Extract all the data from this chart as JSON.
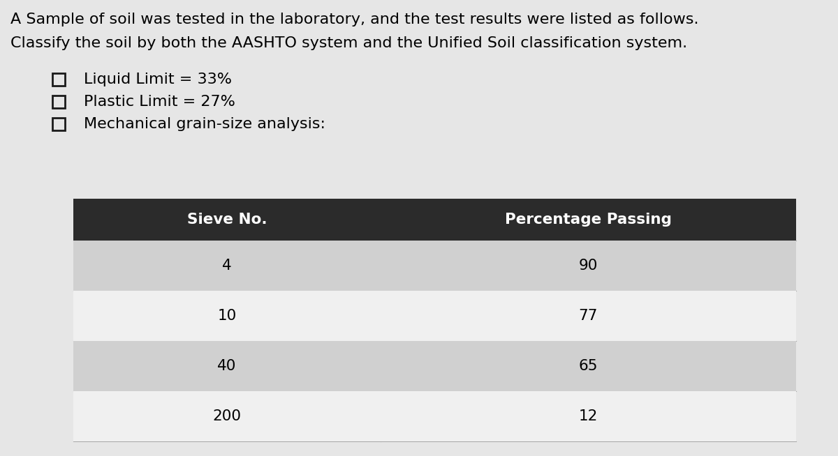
{
  "title_line1": "A Sample of soil was tested in the laboratory, and the test results were listed as follows.",
  "title_line2": "Classify the soil by both the AASHTO system and the Unified Soil classification system.",
  "bullet_items": [
    "Liquid Limit = 33%",
    "Plastic Limit = 27%",
    "Mechanical grain-size analysis:"
  ],
  "table_headers": [
    "Sieve No.",
    "Percentage Passing"
  ],
  "table_data": [
    [
      "4",
      "90"
    ],
    [
      "10",
      "77"
    ],
    [
      "40",
      "65"
    ],
    [
      "200",
      "12"
    ]
  ],
  "header_bg": "#2b2b2b",
  "header_fg": "#ffffff",
  "row_bg_odd": "#d0d0d0",
  "row_bg_even": "#f0f0f0",
  "background_color": "#e6e6e6",
  "text_color": "#000000",
  "title_fontsize": 16.0,
  "bullet_fontsize": 16.0,
  "table_header_fontsize": 15.5,
  "table_data_fontsize": 15.5
}
